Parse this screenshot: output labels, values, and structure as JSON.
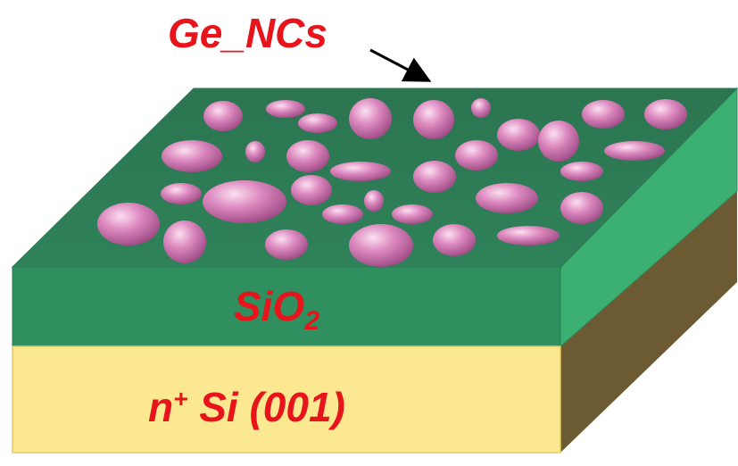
{
  "labels": {
    "nanocrystals": "Ge_NCs",
    "oxide_main": "SiO",
    "oxide_subscript": "2",
    "substrate_prefix": "n",
    "substrate_superscript": "+",
    "substrate_rest": " Si (001)"
  },
  "colors": {
    "label_text": "#e8141c",
    "oxide_top": "#2e7d57",
    "oxide_front": "#2f8f5e",
    "oxide_side": "#3cb073",
    "substrate_front": "#fbe890",
    "substrate_side": "#6b5a32",
    "nanocrystal": "#d87fb8"
  }
}
